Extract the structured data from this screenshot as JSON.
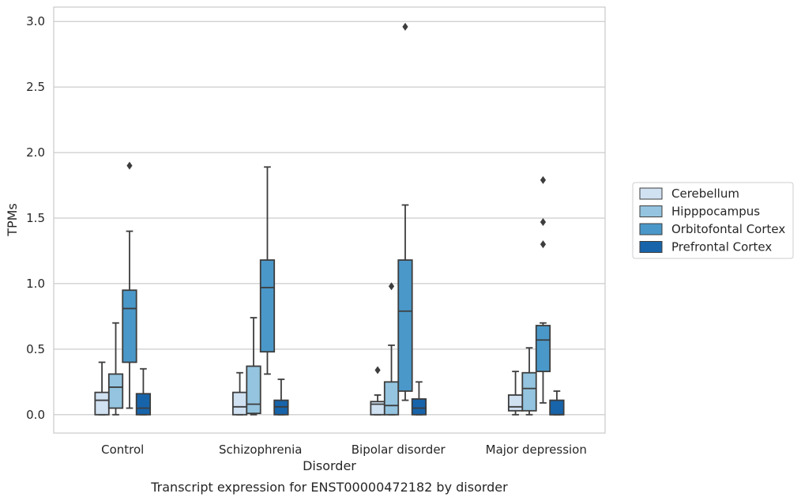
{
  "chart_data": {
    "type": "box",
    "title": "",
    "xlabel": "Disorder",
    "ylabel": "TPMs",
    "caption": "Transcript expression for ENST00000472182 by disorder",
    "ylim": [
      -0.14,
      3.11
    ],
    "yticks": [
      "0.0",
      "0.5",
      "1.0",
      "1.5",
      "2.0",
      "2.5",
      "3.0"
    ],
    "grid": "horizontal",
    "legend_position": "right",
    "categories": [
      "Control",
      "Schizophrenia",
      "Bipolar disorder",
      "Major depression"
    ],
    "series": [
      {
        "name": "Cerebellum",
        "color": "#d0e1f2",
        "boxes": [
          {
            "whisker_low": 0.0,
            "q1": 0.0,
            "median": 0.11,
            "q3": 0.17,
            "whisker_high": 0.4,
            "outliers": []
          },
          {
            "whisker_low": 0.0,
            "q1": 0.0,
            "median": 0.06,
            "q3": 0.17,
            "whisker_high": 0.32,
            "outliers": []
          },
          {
            "whisker_low": 0.0,
            "q1": 0.0,
            "median": 0.08,
            "q3": 0.1,
            "whisker_high": 0.15,
            "outliers": [
              0.34
            ]
          },
          {
            "whisker_low": 0.0,
            "q1": 0.03,
            "median": 0.06,
            "q3": 0.15,
            "whisker_high": 0.33,
            "outliers": []
          }
        ]
      },
      {
        "name": "Hipppocampus",
        "color": "#94c4df",
        "boxes": [
          {
            "whisker_low": 0.0,
            "q1": 0.05,
            "median": 0.21,
            "q3": 0.31,
            "whisker_high": 0.7,
            "outliers": []
          },
          {
            "whisker_low": 0.0,
            "q1": 0.01,
            "median": 0.08,
            "q3": 0.37,
            "whisker_high": 0.74,
            "outliers": []
          },
          {
            "whisker_low": 0.0,
            "q1": 0.0,
            "median": 0.07,
            "q3": 0.25,
            "whisker_high": 0.53,
            "outliers": [
              0.98
            ]
          },
          {
            "whisker_low": 0.0,
            "q1": 0.03,
            "median": 0.2,
            "q3": 0.32,
            "whisker_high": 0.51,
            "outliers": []
          }
        ]
      },
      {
        "name": "Orbitofontal Cortex",
        "color": "#4a98c9",
        "boxes": [
          {
            "whisker_low": 0.05,
            "q1": 0.4,
            "median": 0.81,
            "q3": 0.95,
            "whisker_high": 1.4,
            "outliers": [
              1.9
            ]
          },
          {
            "whisker_low": 0.31,
            "q1": 0.48,
            "median": 0.97,
            "q3": 1.18,
            "whisker_high": 1.89,
            "outliers": []
          },
          {
            "whisker_low": 0.11,
            "q1": 0.18,
            "median": 0.79,
            "q3": 1.18,
            "whisker_high": 1.6,
            "outliers": [
              2.96
            ]
          },
          {
            "whisker_low": 0.09,
            "q1": 0.33,
            "median": 0.57,
            "q3": 0.68,
            "whisker_high": 0.7,
            "outliers": [
              1.3,
              1.47,
              1.79
            ]
          }
        ]
      },
      {
        "name": "Prefrontal Cortex",
        "color": "#1764ab",
        "boxes": [
          {
            "whisker_low": 0.0,
            "q1": 0.0,
            "median": 0.05,
            "q3": 0.16,
            "whisker_high": 0.35,
            "outliers": []
          },
          {
            "whisker_low": 0.0,
            "q1": 0.0,
            "median": 0.06,
            "q3": 0.11,
            "whisker_high": 0.27,
            "outliers": []
          },
          {
            "whisker_low": 0.0,
            "q1": 0.0,
            "median": 0.05,
            "q3": 0.12,
            "whisker_high": 0.25,
            "outliers": []
          },
          {
            "whisker_low": 0.0,
            "q1": 0.0,
            "median": 0.0,
            "q3": 0.11,
            "whisker_high": 0.18,
            "outliers": []
          }
        ]
      }
    ]
  }
}
